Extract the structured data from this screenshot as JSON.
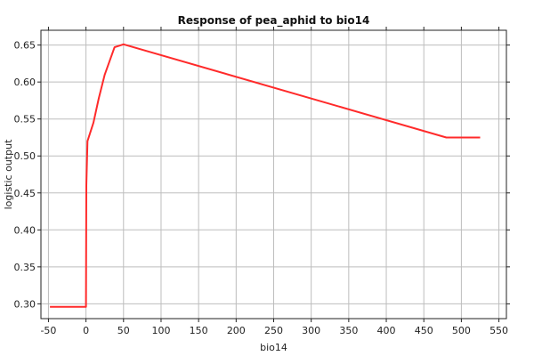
{
  "chart_data": {
    "type": "line",
    "title": "Response of pea_aphid to bio14",
    "xlabel": "bio14",
    "ylabel": "logistic output",
    "xlim": [
      -60,
      560
    ],
    "ylim": [
      0.28,
      0.67
    ],
    "xticks": [
      -50,
      0,
      50,
      100,
      150,
      200,
      250,
      300,
      350,
      400,
      450,
      500,
      550
    ],
    "yticks": [
      0.3,
      0.35,
      0.4,
      0.45,
      0.5,
      0.55,
      0.6,
      0.65
    ],
    "xtick_labels": [
      "-50",
      "0",
      "50",
      "100",
      "150",
      "200",
      "250",
      "300",
      "350",
      "400",
      "450",
      "500",
      "550"
    ],
    "ytick_labels": [
      "0.30",
      "0.35",
      "0.40",
      "0.45",
      "0.50",
      "0.55",
      "0.60",
      "0.65"
    ],
    "grid": true,
    "series": [
      {
        "color": "#ff2a2a",
        "x": [
          -48,
          0,
          0.5,
          2,
          10,
          17,
          25,
          38,
          50,
          480,
          525
        ],
        "y": [
          0.296,
          0.296,
          0.46,
          0.52,
          0.545,
          0.578,
          0.61,
          0.647,
          0.651,
          0.525,
          0.525
        ]
      }
    ]
  }
}
